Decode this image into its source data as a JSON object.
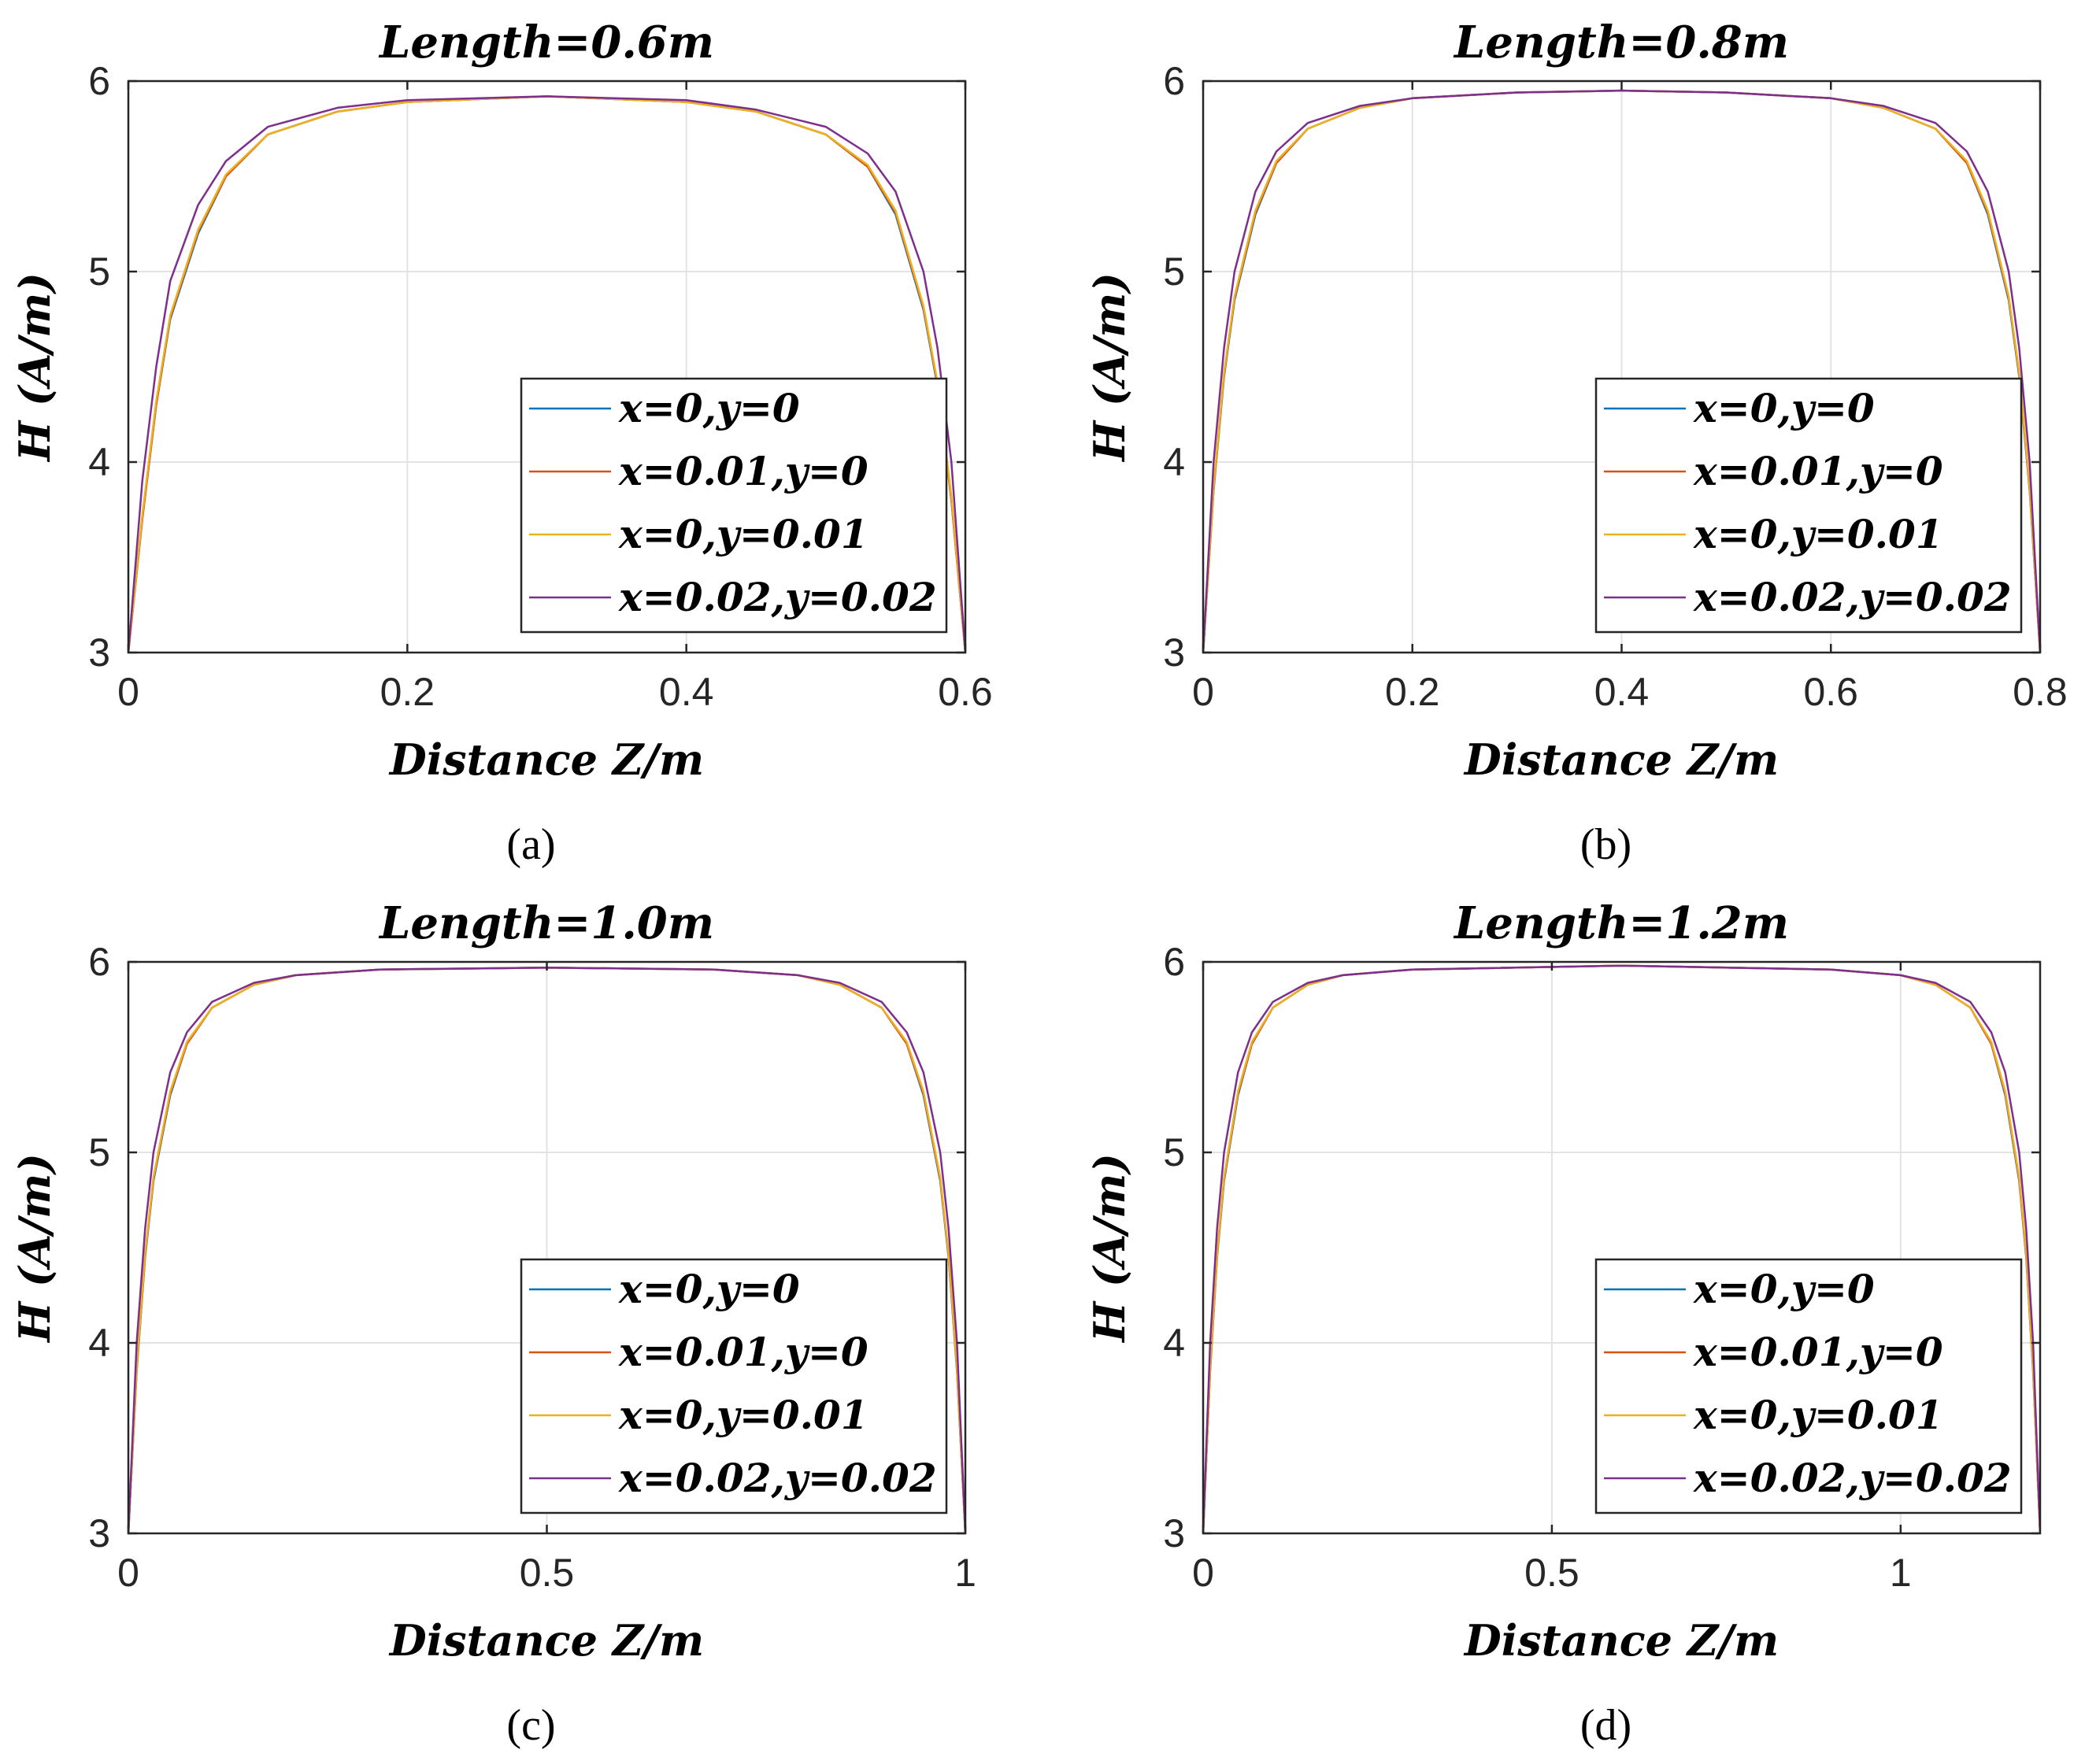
{
  "chart_data": [
    {
      "type": "line",
      "title": "Length=0.6m",
      "xlabel": "Distance Z/m",
      "ylabel": "H (A/m)",
      "panel_label": "(a)",
      "xlim": [
        0,
        0.6
      ],
      "ylim": [
        3,
        6
      ],
      "xticks": [
        0,
        0.2,
        0.4,
        0.6
      ],
      "xtick_labels": [
        "0",
        "0.2",
        "0.4",
        "0.6"
      ],
      "yticks": [
        3,
        4,
        5,
        6
      ],
      "ytick_labels": [
        "3",
        "4",
        "5",
        "6"
      ],
      "grid": true,
      "legend_position": "bottom-right",
      "series": [
        {
          "name": "x=0,y=0",
          "color": "#0072BD",
          "x": [
            0,
            0.01,
            0.02,
            0.03,
            0.05,
            0.07,
            0.1,
            0.15,
            0.2,
            0.3,
            0.4,
            0.45,
            0.5,
            0.53,
            0.55,
            0.57,
            0.58,
            0.59,
            0.6
          ],
          "y": [
            3.0,
            3.7,
            4.3,
            4.75,
            5.2,
            5.5,
            5.72,
            5.84,
            5.89,
            5.92,
            5.89,
            5.84,
            5.72,
            5.55,
            5.3,
            4.8,
            4.4,
            3.8,
            3.0
          ]
        },
        {
          "name": "x=0.01,y=0",
          "color": "#D95319",
          "x": [
            0,
            0.01,
            0.02,
            0.03,
            0.05,
            0.07,
            0.1,
            0.15,
            0.2,
            0.3,
            0.4,
            0.45,
            0.5,
            0.53,
            0.55,
            0.57,
            0.58,
            0.59,
            0.6
          ],
          "y": [
            3.0,
            3.7,
            4.3,
            4.76,
            5.21,
            5.5,
            5.72,
            5.84,
            5.89,
            5.92,
            5.89,
            5.84,
            5.72,
            5.55,
            5.31,
            4.81,
            4.41,
            3.8,
            3.0
          ]
        },
        {
          "name": "x=0,y=0.01",
          "color": "#EDB120",
          "x": [
            0,
            0.01,
            0.02,
            0.03,
            0.05,
            0.07,
            0.1,
            0.15,
            0.2,
            0.3,
            0.4,
            0.45,
            0.5,
            0.53,
            0.55,
            0.57,
            0.58,
            0.59,
            0.6
          ],
          "y": [
            3.0,
            3.72,
            4.32,
            4.77,
            5.22,
            5.51,
            5.72,
            5.84,
            5.89,
            5.92,
            5.89,
            5.84,
            5.72,
            5.56,
            5.32,
            4.82,
            4.42,
            3.82,
            3.0
          ]
        },
        {
          "name": "x=0.02,y=0.02",
          "color": "#7E2F8E",
          "x": [
            0,
            0.01,
            0.02,
            0.03,
            0.05,
            0.07,
            0.1,
            0.15,
            0.2,
            0.3,
            0.4,
            0.45,
            0.5,
            0.53,
            0.55,
            0.57,
            0.58,
            0.59,
            0.6
          ],
          "y": [
            3.0,
            3.9,
            4.5,
            4.95,
            5.35,
            5.58,
            5.76,
            5.86,
            5.9,
            5.92,
            5.9,
            5.85,
            5.76,
            5.62,
            5.42,
            5.0,
            4.6,
            4.0,
            3.0
          ]
        }
      ]
    },
    {
      "type": "line",
      "title": "Length=0.8m",
      "xlabel": "Distance Z/m",
      "ylabel": "H (A/m)",
      "panel_label": "(b)",
      "xlim": [
        0,
        0.8
      ],
      "ylim": [
        3,
        6
      ],
      "xticks": [
        0,
        0.2,
        0.4,
        0.6,
        0.8
      ],
      "xtick_labels": [
        "0",
        "0.2",
        "0.4",
        "0.6",
        "0.8"
      ],
      "yticks": [
        3,
        4,
        5,
        6
      ],
      "ytick_labels": [
        "3",
        "4",
        "5",
        "6"
      ],
      "grid": true,
      "legend_position": "bottom-right",
      "series": [
        {
          "name": "x=0,y=0",
          "color": "#0072BD",
          "x": [
            0,
            0.01,
            0.02,
            0.03,
            0.05,
            0.07,
            0.1,
            0.15,
            0.2,
            0.3,
            0.4,
            0.5,
            0.6,
            0.65,
            0.7,
            0.73,
            0.75,
            0.77,
            0.78,
            0.79,
            0.8
          ],
          "y": [
            3.0,
            3.85,
            4.45,
            4.85,
            5.3,
            5.57,
            5.75,
            5.86,
            5.91,
            5.94,
            5.95,
            5.94,
            5.91,
            5.86,
            5.75,
            5.57,
            5.3,
            4.85,
            4.45,
            3.85,
            3.0
          ]
        },
        {
          "name": "x=0.01,y=0",
          "color": "#D95319",
          "x": [
            0,
            0.01,
            0.02,
            0.03,
            0.05,
            0.07,
            0.1,
            0.15,
            0.2,
            0.3,
            0.4,
            0.5,
            0.6,
            0.65,
            0.7,
            0.73,
            0.75,
            0.77,
            0.78,
            0.79,
            0.8
          ],
          "y": [
            3.0,
            3.86,
            4.46,
            4.86,
            5.31,
            5.57,
            5.75,
            5.86,
            5.91,
            5.94,
            5.95,
            5.94,
            5.91,
            5.86,
            5.75,
            5.57,
            5.31,
            4.86,
            4.46,
            3.86,
            3.0
          ]
        },
        {
          "name": "x=0,y=0.01",
          "color": "#EDB120",
          "x": [
            0,
            0.01,
            0.02,
            0.03,
            0.05,
            0.07,
            0.1,
            0.15,
            0.2,
            0.3,
            0.4,
            0.5,
            0.6,
            0.65,
            0.7,
            0.73,
            0.75,
            0.77,
            0.78,
            0.79,
            0.8
          ],
          "y": [
            3.0,
            3.87,
            4.47,
            4.87,
            5.32,
            5.58,
            5.75,
            5.86,
            5.91,
            5.94,
            5.95,
            5.94,
            5.91,
            5.86,
            5.75,
            5.58,
            5.32,
            4.87,
            4.47,
            3.87,
            3.0
          ]
        },
        {
          "name": "x=0.02,y=0.02",
          "color": "#7E2F8E",
          "x": [
            0,
            0.01,
            0.02,
            0.03,
            0.05,
            0.07,
            0.1,
            0.15,
            0.2,
            0.3,
            0.4,
            0.5,
            0.6,
            0.65,
            0.7,
            0.73,
            0.75,
            0.77,
            0.78,
            0.79,
            0.8
          ],
          "y": [
            3.0,
            4.0,
            4.6,
            5.0,
            5.42,
            5.63,
            5.78,
            5.87,
            5.91,
            5.94,
            5.95,
            5.94,
            5.91,
            5.87,
            5.78,
            5.63,
            5.42,
            5.0,
            4.6,
            4.0,
            3.0
          ]
        }
      ]
    },
    {
      "type": "line",
      "title": "Length=1.0m",
      "xlabel": "Distance Z/m",
      "ylabel": "H (A/m)",
      "panel_label": "(c)",
      "xlim": [
        0,
        1.0
      ],
      "ylim": [
        3,
        6
      ],
      "xticks": [
        0,
        0.5,
        1
      ],
      "xtick_labels": [
        "0",
        "0.5",
        "1"
      ],
      "yticks": [
        3,
        4,
        5,
        6
      ],
      "ytick_labels": [
        "3",
        "4",
        "5",
        "6"
      ],
      "grid": true,
      "legend_position": "bottom-right",
      "series": [
        {
          "name": "x=0,y=0",
          "color": "#0072BD",
          "x": [
            0,
            0.01,
            0.02,
            0.03,
            0.05,
            0.07,
            0.1,
            0.15,
            0.2,
            0.3,
            0.5,
            0.7,
            0.8,
            0.85,
            0.9,
            0.93,
            0.95,
            0.97,
            0.98,
            0.99,
            1.0
          ],
          "y": [
            3.0,
            3.85,
            4.45,
            4.85,
            5.3,
            5.57,
            5.76,
            5.88,
            5.93,
            5.96,
            5.97,
            5.96,
            5.93,
            5.88,
            5.76,
            5.57,
            5.3,
            4.85,
            4.45,
            3.85,
            3.0
          ]
        },
        {
          "name": "x=0.01,y=0",
          "color": "#D95319",
          "x": [
            0,
            0.01,
            0.02,
            0.03,
            0.05,
            0.07,
            0.1,
            0.15,
            0.2,
            0.3,
            0.5,
            0.7,
            0.8,
            0.85,
            0.9,
            0.93,
            0.95,
            0.97,
            0.98,
            0.99,
            1.0
          ],
          "y": [
            3.0,
            3.86,
            4.46,
            4.86,
            5.31,
            5.57,
            5.76,
            5.88,
            5.93,
            5.96,
            5.97,
            5.96,
            5.93,
            5.88,
            5.76,
            5.57,
            5.31,
            4.86,
            4.46,
            3.86,
            3.0
          ]
        },
        {
          "name": "x=0,y=0.01",
          "color": "#EDB120",
          "x": [
            0,
            0.01,
            0.02,
            0.03,
            0.05,
            0.07,
            0.1,
            0.15,
            0.2,
            0.3,
            0.5,
            0.7,
            0.8,
            0.85,
            0.9,
            0.93,
            0.95,
            0.97,
            0.98,
            0.99,
            1.0
          ],
          "y": [
            3.0,
            3.87,
            4.47,
            4.87,
            5.32,
            5.58,
            5.76,
            5.88,
            5.93,
            5.96,
            5.97,
            5.96,
            5.93,
            5.88,
            5.76,
            5.58,
            5.32,
            4.87,
            4.47,
            3.87,
            3.0
          ]
        },
        {
          "name": "x=0.02,y=0.02",
          "color": "#7E2F8E",
          "x": [
            0,
            0.01,
            0.02,
            0.03,
            0.05,
            0.07,
            0.1,
            0.15,
            0.2,
            0.3,
            0.5,
            0.7,
            0.8,
            0.85,
            0.9,
            0.93,
            0.95,
            0.97,
            0.98,
            0.99,
            1.0
          ],
          "y": [
            3.0,
            4.0,
            4.6,
            5.0,
            5.42,
            5.63,
            5.79,
            5.89,
            5.93,
            5.96,
            5.97,
            5.96,
            5.93,
            5.89,
            5.79,
            5.63,
            5.42,
            5.0,
            4.6,
            4.0,
            3.0
          ]
        }
      ]
    },
    {
      "type": "line",
      "title": "Length=1.2m",
      "xlabel": "Distance Z/m",
      "ylabel": "H (A/m)",
      "panel_label": "(d)",
      "xlim": [
        0,
        1.2
      ],
      "ylim": [
        3,
        6
      ],
      "xticks": [
        0,
        0.5,
        1
      ],
      "xtick_labels": [
        "0",
        "0.5",
        "1"
      ],
      "yticks": [
        3,
        4,
        5,
        6
      ],
      "ytick_labels": [
        "3",
        "4",
        "5",
        "6"
      ],
      "grid": true,
      "legend_position": "bottom-right",
      "series": [
        {
          "name": "x=0,y=0",
          "color": "#0072BD",
          "x": [
            0,
            0.01,
            0.02,
            0.03,
            0.05,
            0.07,
            0.1,
            0.15,
            0.2,
            0.3,
            0.6,
            0.9,
            1.0,
            1.05,
            1.1,
            1.13,
            1.15,
            1.17,
            1.18,
            1.19,
            1.2
          ],
          "y": [
            3.0,
            3.85,
            4.45,
            4.85,
            5.3,
            5.57,
            5.76,
            5.88,
            5.93,
            5.96,
            5.98,
            5.96,
            5.93,
            5.88,
            5.76,
            5.57,
            5.3,
            4.85,
            4.45,
            3.85,
            3.0
          ]
        },
        {
          "name": "x=0.01,y=0",
          "color": "#D95319",
          "x": [
            0,
            0.01,
            0.02,
            0.03,
            0.05,
            0.07,
            0.1,
            0.15,
            0.2,
            0.3,
            0.6,
            0.9,
            1.0,
            1.05,
            1.1,
            1.13,
            1.15,
            1.17,
            1.18,
            1.19,
            1.2
          ],
          "y": [
            3.0,
            3.86,
            4.46,
            4.86,
            5.31,
            5.57,
            5.76,
            5.88,
            5.93,
            5.96,
            5.98,
            5.96,
            5.93,
            5.88,
            5.76,
            5.57,
            5.31,
            4.86,
            4.46,
            3.86,
            3.0
          ]
        },
        {
          "name": "x=0,y=0.01",
          "color": "#EDB120",
          "x": [
            0,
            0.01,
            0.02,
            0.03,
            0.05,
            0.07,
            0.1,
            0.15,
            0.2,
            0.3,
            0.6,
            0.9,
            1.0,
            1.05,
            1.1,
            1.13,
            1.15,
            1.17,
            1.18,
            1.19,
            1.2
          ],
          "y": [
            3.0,
            3.87,
            4.47,
            4.87,
            5.32,
            5.58,
            5.76,
            5.88,
            5.93,
            5.96,
            5.98,
            5.96,
            5.93,
            5.88,
            5.76,
            5.58,
            5.32,
            4.87,
            4.47,
            3.87,
            3.0
          ]
        },
        {
          "name": "x=0.02,y=0.02",
          "color": "#7E2F8E",
          "x": [
            0,
            0.01,
            0.02,
            0.03,
            0.05,
            0.07,
            0.1,
            0.15,
            0.2,
            0.3,
            0.6,
            0.9,
            1.0,
            1.05,
            1.1,
            1.13,
            1.15,
            1.17,
            1.18,
            1.19,
            1.2
          ],
          "y": [
            3.0,
            4.0,
            4.6,
            5.0,
            5.42,
            5.63,
            5.79,
            5.89,
            5.93,
            5.96,
            5.98,
            5.96,
            5.93,
            5.89,
            5.79,
            5.63,
            5.42,
            5.0,
            4.6,
            4.0,
            3.0
          ]
        }
      ]
    }
  ]
}
